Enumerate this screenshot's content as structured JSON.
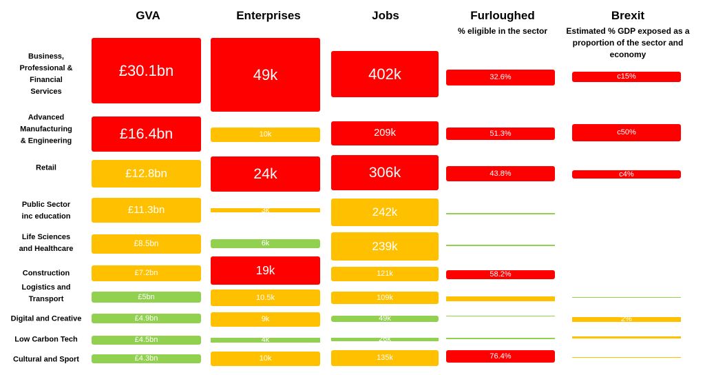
{
  "header": {
    "columns": [
      {
        "title": "GVA"
      },
      {
        "title": "Enterprises"
      },
      {
        "title": "Jobs"
      },
      {
        "title": "Furloughed",
        "subtitle": "% eligible in the sector"
      },
      {
        "title": "Brexit",
        "subtitle": "Estimated % GDP exposed as a proportion of the sector and  economy"
      }
    ]
  },
  "rows": [
    {
      "label": [
        "Business,",
        "Professional &",
        "Financial",
        "Services"
      ],
      "cells": [
        {
          "text": "£30.1bn",
          "color": "#ff0000"
        },
        {
          "text": "49k",
          "color": "#ff0000"
        },
        {
          "text": "402k",
          "color": "#ff0000"
        },
        {
          "text": "32.6%",
          "color": "#ff0000"
        },
        {
          "text": "c15%",
          "color": "#ff0000"
        }
      ]
    },
    {
      "label": [
        "Advanced",
        "Manufacturing",
        "& Engineering"
      ],
      "cells": [
        {
          "text": "£16.4bn",
          "color": "#ff0000"
        },
        {
          "text": "10k",
          "color": "#ffc000"
        },
        {
          "text": "209k",
          "color": "#ff0000"
        },
        {
          "text": "51.3%",
          "color": "#ff0000"
        },
        {
          "text": "c50%",
          "color": "#ff0000"
        }
      ]
    },
    {
      "label": [
        "Retail"
      ],
      "cells": [
        {
          "text": "£12.8bn",
          "color": "#ffc000"
        },
        {
          "text": "24k",
          "color": "#ff0000"
        },
        {
          "text": "306k",
          "color": "#ff0000"
        },
        {
          "text": "43.8%",
          "color": "#ff0000"
        },
        {
          "text": "c4%",
          "color": "#ff0000"
        }
      ]
    },
    {
      "label": [
        "Public Sector",
        "inc education"
      ],
      "cells": [
        {
          "text": "£11.3bn",
          "color": "#ffc000"
        },
        {
          "text": "3k",
          "color": "#ffc000"
        },
        {
          "text": "242k",
          "color": "#ffc000"
        },
        {
          "color": "#92d050"
        },
        null
      ]
    },
    {
      "label": [
        "Life Sciences",
        "and Healthcare"
      ],
      "cells": [
        {
          "text": "£8.5bn",
          "color": "#ffc000"
        },
        {
          "text": "6k",
          "color": "#92d050"
        },
        {
          "text": "239k",
          "color": "#ffc000"
        },
        {
          "color": "#92d050"
        },
        null
      ]
    },
    {
      "label": [
        "Construction"
      ],
      "cells": [
        {
          "text": "£7.2bn",
          "color": "#ffc000"
        },
        {
          "text": "19k",
          "color": "#ff0000"
        },
        {
          "text": "121k",
          "color": "#ffc000"
        },
        {
          "text": "58.2%",
          "color": "#ff0000"
        },
        null
      ]
    },
    {
      "label": [
        "Logistics and",
        "Transport"
      ],
      "cells": [
        {
          "text": "£5bn",
          "color": "#92d050"
        },
        {
          "text": "10.5k",
          "color": "#ffc000"
        },
        {
          "text": "109k",
          "color": "#ffc000"
        },
        {
          "color": "#ffc000"
        },
        {
          "color": "#92d050"
        }
      ]
    },
    {
      "label": [
        "Digital and Creative"
      ],
      "cells": [
        {
          "text": "£4.9bn",
          "color": "#92d050"
        },
        {
          "text": "9k",
          "color": "#ffc000"
        },
        {
          "text": "49k",
          "color": "#92d050"
        },
        {
          "color": "#92d050"
        },
        {
          "text": "2%",
          "color": "#ffc000"
        }
      ]
    },
    {
      "label": [
        "Low Carbon Tech"
      ],
      "cells": [
        {
          "text": "£4.5bn",
          "color": "#92d050"
        },
        {
          "text": "4k",
          "color": "#92d050"
        },
        {
          "text": "26k",
          "color": "#92d050"
        },
        {
          "color": "#92d050"
        },
        {
          "color": "#ffc000"
        }
      ]
    },
    {
      "label": [
        "Cultural and Sport"
      ],
      "cells": [
        {
          "text": "£4.3bn",
          "color": "#92d050"
        },
        {
          "text": "10k",
          "color": "#ffc000"
        },
        {
          "text": "135k",
          "color": "#ffc000"
        },
        {
          "text": "76.4%",
          "color": "#ff0000"
        },
        {
          "color": "#ffc000"
        }
      ]
    }
  ]
}
